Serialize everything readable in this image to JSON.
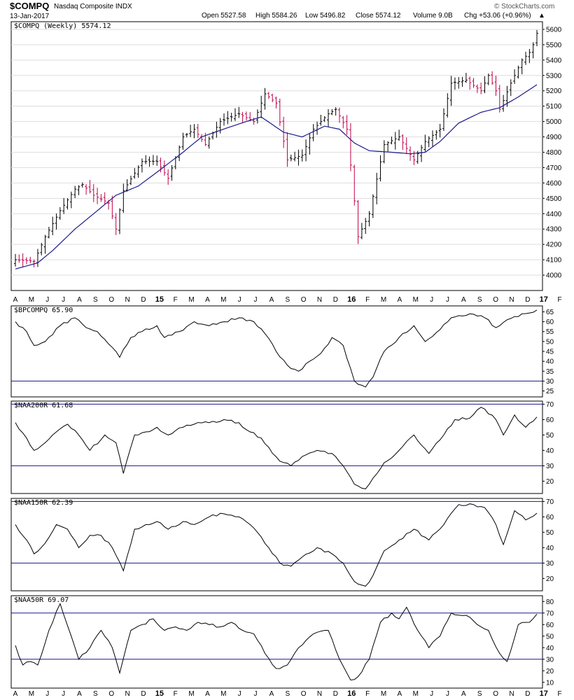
{
  "header": {
    "symbol": "$COMPQ",
    "name": "Nasdaq Composite INDX",
    "date": "13-Jan-2017",
    "open": "Open 5527.58",
    "high": "High 5584.26",
    "low": "Low 5496.82",
    "close": "Close 5574.12",
    "volume": "Volume 9.0B",
    "chg": "Chg +53.06 (+0.96%)",
    "chg_arrow": "▲",
    "watermark": "© StockCharts.com"
  },
  "colors": {
    "up_bar": "#000000",
    "down_bar": "#c0004a",
    "ma": "#1a1a8c",
    "line": "#000000",
    "grid": "#dddddd",
    "ref": "#1a1a8c"
  },
  "x_axis": {
    "months": [
      "A",
      "M",
      "J",
      "J",
      "A",
      "S",
      "O",
      "N",
      "D",
      "15",
      "F",
      "M",
      "A",
      "M",
      "J",
      "J",
      "A",
      "S",
      "O",
      "N",
      "D",
      "16",
      "F",
      "M",
      "A",
      "M",
      "J",
      "J",
      "A",
      "S",
      "O",
      "N",
      "D",
      "17",
      "F"
    ],
    "year_marks": [
      "15",
      "16",
      "17"
    ]
  },
  "chart_data": [
    {
      "type": "ohlc",
      "title": "$COMPQ (Weekly) 5574.12",
      "ylim": [
        3900,
        5650
      ],
      "yticks": [
        4000,
        4100,
        4200,
        4300,
        4400,
        4500,
        4600,
        4700,
        4800,
        4900,
        5000,
        5100,
        5200,
        5300,
        5400,
        5500,
        5600
      ],
      "grid": true,
      "close_anchors": [
        [
          0,
          4100
        ],
        [
          5,
          4090
        ],
        [
          8,
          4250
        ],
        [
          12,
          4420
        ],
        [
          16,
          4560
        ],
        [
          18,
          4590
        ],
        [
          21,
          4520
        ],
        [
          25,
          4470
        ],
        [
          27,
          4300
        ],
        [
          29,
          4550
        ],
        [
          34,
          4740
        ],
        [
          38,
          4740
        ],
        [
          41,
          4630
        ],
        [
          45,
          4900
        ],
        [
          48,
          4950
        ],
        [
          51,
          4850
        ],
        [
          55,
          5000
        ],
        [
          60,
          5050
        ],
        [
          64,
          5000
        ],
        [
          67,
          5180
        ],
        [
          70,
          5120
        ],
        [
          73,
          4750
        ],
        [
          77,
          4780
        ],
        [
          80,
          4950
        ],
        [
          84,
          5050
        ],
        [
          86,
          5080
        ],
        [
          89,
          4950
        ],
        [
          92,
          4250
        ],
        [
          95,
          4400
        ],
        [
          99,
          4850
        ],
        [
          103,
          4900
        ],
        [
          107,
          4750
        ],
        [
          110,
          4870
        ],
        [
          114,
          4950
        ],
        [
          117,
          5250
        ],
        [
          121,
          5270
        ],
        [
          125,
          5200
        ],
        [
          127,
          5300
        ],
        [
          129,
          5200
        ],
        [
          130,
          5080
        ],
        [
          133,
          5250
        ],
        [
          136,
          5400
        ],
        [
          138,
          5450
        ],
        [
          139,
          5500
        ],
        [
          140,
          5574
        ]
      ],
      "ma_anchors": [
        [
          0,
          4040
        ],
        [
          6,
          4080
        ],
        [
          10,
          4160
        ],
        [
          16,
          4300
        ],
        [
          21,
          4400
        ],
        [
          27,
          4520
        ],
        [
          33,
          4580
        ],
        [
          38,
          4670
        ],
        [
          45,
          4800
        ],
        [
          50,
          4900
        ],
        [
          57,
          4960
        ],
        [
          62,
          5000
        ],
        [
          66,
          5030
        ],
        [
          69,
          4980
        ],
        [
          72,
          4930
        ],
        [
          77,
          4900
        ],
        [
          83,
          4970
        ],
        [
          87,
          4950
        ],
        [
          91,
          4860
        ],
        [
          95,
          4810
        ],
        [
          101,
          4800
        ],
        [
          106,
          4790
        ],
        [
          110,
          4800
        ],
        [
          114,
          4870
        ],
        [
          119,
          4990
        ],
        [
          125,
          5060
        ],
        [
          130,
          5090
        ],
        [
          135,
          5160
        ],
        [
          140,
          5240
        ]
      ]
    },
    {
      "type": "line",
      "title": "$BPCOMPQ 65.90",
      "ylim": [
        22,
        68
      ],
      "yticks": [
        25,
        30,
        35,
        40,
        45,
        50,
        55,
        60,
        65
      ],
      "ref_lines": [
        30
      ],
      "anchors": [
        [
          0,
          60
        ],
        [
          3,
          55
        ],
        [
          5,
          48
        ],
        [
          8,
          50
        ],
        [
          12,
          58
        ],
        [
          16,
          62
        ],
        [
          19,
          57
        ],
        [
          22,
          55
        ],
        [
          26,
          47
        ],
        [
          28,
          42
        ],
        [
          31,
          52
        ],
        [
          34,
          55
        ],
        [
          38,
          58
        ],
        [
          40,
          52
        ],
        [
          44,
          55
        ],
        [
          48,
          60
        ],
        [
          52,
          58
        ],
        [
          56,
          60
        ],
        [
          60,
          62
        ],
        [
          64,
          60
        ],
        [
          67,
          54
        ],
        [
          70,
          45
        ],
        [
          73,
          38
        ],
        [
          76,
          35
        ],
        [
          79,
          40
        ],
        [
          82,
          44
        ],
        [
          85,
          52
        ],
        [
          88,
          48
        ],
        [
          91,
          30
        ],
        [
          94,
          27
        ],
        [
          96,
          32
        ],
        [
          99,
          45
        ],
        [
          103,
          52
        ],
        [
          107,
          58
        ],
        [
          110,
          50
        ],
        [
          114,
          56
        ],
        [
          117,
          62
        ],
        [
          122,
          64
        ],
        [
          126,
          62
        ],
        [
          129,
          57
        ],
        [
          132,
          61
        ],
        [
          136,
          64
        ],
        [
          140,
          65.9
        ]
      ]
    },
    {
      "type": "line",
      "title": "$NAA200R 61.68",
      "ylim": [
        12,
        72
      ],
      "yticks": [
        20,
        30,
        40,
        50,
        60,
        70
      ],
      "ref_lines": [
        30,
        70
      ],
      "anchors": [
        [
          0,
          58
        ],
        [
          3,
          48
        ],
        [
          5,
          40
        ],
        [
          8,
          45
        ],
        [
          11,
          52
        ],
        [
          14,
          57
        ],
        [
          17,
          50
        ],
        [
          20,
          40
        ],
        [
          24,
          50
        ],
        [
          27,
          45
        ],
        [
          29,
          25
        ],
        [
          32,
          50
        ],
        [
          35,
          52
        ],
        [
          38,
          55
        ],
        [
          41,
          50
        ],
        [
          45,
          55
        ],
        [
          48,
          57
        ],
        [
          52,
          58
        ],
        [
          56,
          60
        ],
        [
          60,
          58
        ],
        [
          63,
          52
        ],
        [
          66,
          48
        ],
        [
          68,
          42
        ],
        [
          71,
          33
        ],
        [
          74,
          30
        ],
        [
          77,
          36
        ],
        [
          81,
          40
        ],
        [
          85,
          38
        ],
        [
          88,
          30
        ],
        [
          91,
          18
        ],
        [
          94,
          15
        ],
        [
          96,
          22
        ],
        [
          99,
          32
        ],
        [
          103,
          40
        ],
        [
          107,
          50
        ],
        [
          111,
          38
        ],
        [
          115,
          50
        ],
        [
          118,
          60
        ],
        [
          122,
          61
        ],
        [
          125,
          68
        ],
        [
          129,
          60
        ],
        [
          131,
          50
        ],
        [
          134,
          63
        ],
        [
          137,
          55
        ],
        [
          140,
          61.68
        ]
      ]
    },
    {
      "type": "line",
      "title": "$NAA150R 62.39",
      "ylim": [
        12,
        72
      ],
      "yticks": [
        20,
        30,
        40,
        50,
        60,
        70
      ],
      "ref_lines": [
        30,
        70
      ],
      "anchors": [
        [
          0,
          55
        ],
        [
          3,
          45
        ],
        [
          5,
          36
        ],
        [
          8,
          43
        ],
        [
          11,
          55
        ],
        [
          14,
          52
        ],
        [
          17,
          40
        ],
        [
          20,
          48
        ],
        [
          23,
          48
        ],
        [
          26,
          40
        ],
        [
          29,
          25
        ],
        [
          32,
          52
        ],
        [
          35,
          55
        ],
        [
          38,
          57
        ],
        [
          41,
          52
        ],
        [
          45,
          57
        ],
        [
          48,
          55
        ],
        [
          52,
          60
        ],
        [
          56,
          62
        ],
        [
          60,
          60
        ],
        [
          63,
          55
        ],
        [
          66,
          47
        ],
        [
          68,
          40
        ],
        [
          71,
          30
        ],
        [
          74,
          28
        ],
        [
          77,
          34
        ],
        [
          81,
          40
        ],
        [
          85,
          36
        ],
        [
          88,
          30
        ],
        [
          91,
          18
        ],
        [
          94,
          15
        ],
        [
          96,
          22
        ],
        [
          99,
          38
        ],
        [
          103,
          45
        ],
        [
          107,
          52
        ],
        [
          111,
          45
        ],
        [
          115,
          55
        ],
        [
          119,
          68
        ],
        [
          123,
          68
        ],
        [
          126,
          66
        ],
        [
          129,
          55
        ],
        [
          131,
          42
        ],
        [
          134,
          64
        ],
        [
          137,
          58
        ],
        [
          140,
          62.39
        ]
      ]
    },
    {
      "type": "line",
      "title": "$NAA50R 69.07",
      "ylim": [
        5,
        85
      ],
      "yticks": [
        10,
        20,
        30,
        40,
        50,
        60,
        70,
        80
      ],
      "ref_lines": [
        30,
        70
      ],
      "anchors": [
        [
          0,
          42
        ],
        [
          2,
          25
        ],
        [
          4,
          28
        ],
        [
          6,
          25
        ],
        [
          9,
          55
        ],
        [
          12,
          78
        ],
        [
          15,
          50
        ],
        [
          17,
          30
        ],
        [
          20,
          40
        ],
        [
          23,
          55
        ],
        [
          26,
          40
        ],
        [
          28,
          18
        ],
        [
          31,
          55
        ],
        [
          34,
          60
        ],
        [
          37,
          65
        ],
        [
          40,
          55
        ],
        [
          43,
          58
        ],
        [
          46,
          55
        ],
        [
          49,
          62
        ],
        [
          52,
          60
        ],
        [
          55,
          58
        ],
        [
          58,
          62
        ],
        [
          61,
          55
        ],
        [
          64,
          52
        ],
        [
          67,
          35
        ],
        [
          70,
          22
        ],
        [
          73,
          25
        ],
        [
          76,
          40
        ],
        [
          80,
          52
        ],
        [
          84,
          55
        ],
        [
          87,
          30
        ],
        [
          90,
          12
        ],
        [
          92,
          15
        ],
        [
          95,
          30
        ],
        [
          98,
          62
        ],
        [
          101,
          70
        ],
        [
          103,
          65
        ],
        [
          105,
          75
        ],
        [
          108,
          55
        ],
        [
          111,
          40
        ],
        [
          114,
          50
        ],
        [
          117,
          70
        ],
        [
          121,
          68
        ],
        [
          124,
          60
        ],
        [
          127,
          55
        ],
        [
          130,
          35
        ],
        [
          132,
          28
        ],
        [
          135,
          60
        ],
        [
          138,
          62
        ],
        [
          140,
          69.07
        ]
      ]
    }
  ]
}
